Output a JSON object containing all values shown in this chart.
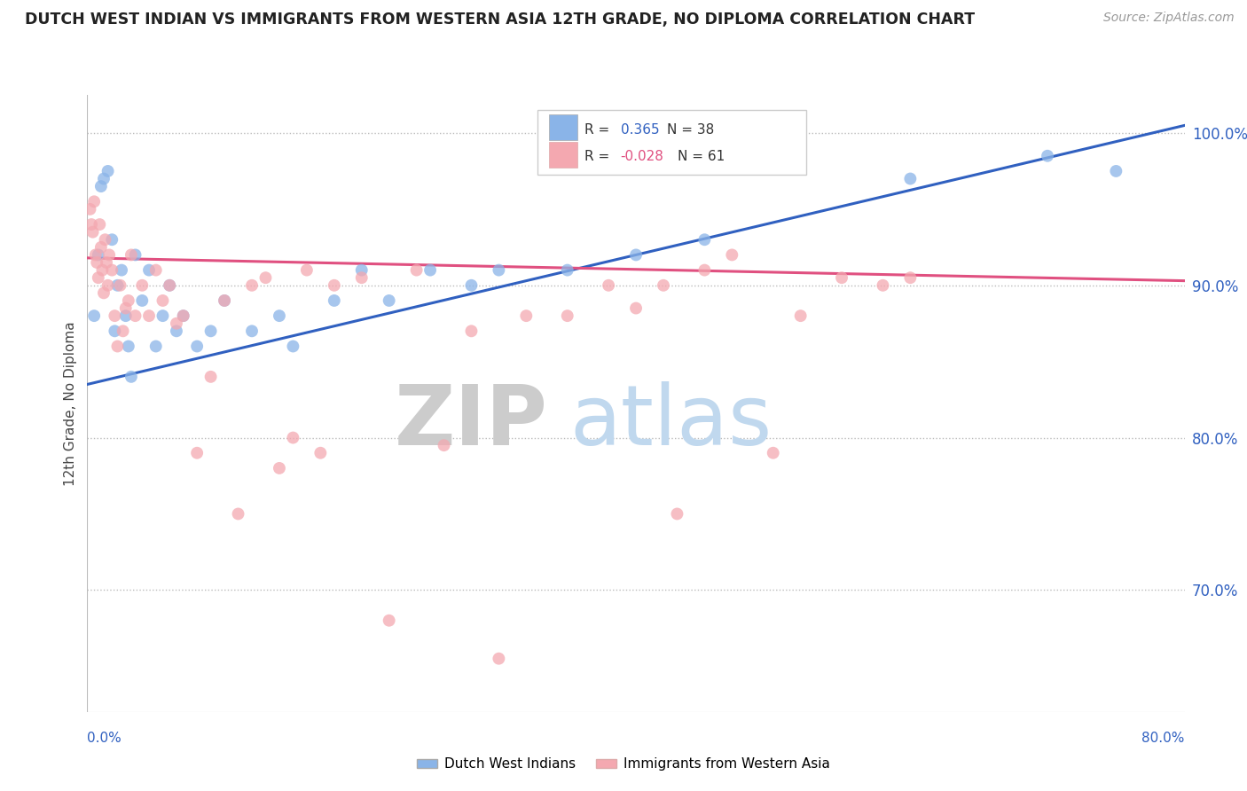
{
  "title": "DUTCH WEST INDIAN VS IMMIGRANTS FROM WESTERN ASIA 12TH GRADE, NO DIPLOMA CORRELATION CHART",
  "source": "Source: ZipAtlas.com",
  "ylabel": "12th Grade, No Diploma",
  "xmin": 0.0,
  "xmax": 80.0,
  "ymin": 62.0,
  "ymax": 102.5,
  "yticks": [
    70.0,
    80.0,
    90.0,
    100.0
  ],
  "legend_val1": "0.365",
  "legend_N1": "38",
  "legend_val2": "-0.028",
  "legend_N2": "61",
  "color_blue": "#8AB4E8",
  "color_pink": "#F4A8B0",
  "color_blue_line": "#3060C0",
  "color_pink_line": "#E05080",
  "blue_dots": [
    [
      0.5,
      88.0
    ],
    [
      0.8,
      92.0
    ],
    [
      1.0,
      96.5
    ],
    [
      1.2,
      97.0
    ],
    [
      1.5,
      97.5
    ],
    [
      1.8,
      93.0
    ],
    [
      2.0,
      87.0
    ],
    [
      2.2,
      90.0
    ],
    [
      2.5,
      91.0
    ],
    [
      2.8,
      88.0
    ],
    [
      3.0,
      86.0
    ],
    [
      3.2,
      84.0
    ],
    [
      3.5,
      92.0
    ],
    [
      4.0,
      89.0
    ],
    [
      4.5,
      91.0
    ],
    [
      5.0,
      86.0
    ],
    [
      5.5,
      88.0
    ],
    [
      6.0,
      90.0
    ],
    [
      6.5,
      87.0
    ],
    [
      7.0,
      88.0
    ],
    [
      8.0,
      86.0
    ],
    [
      9.0,
      87.0
    ],
    [
      10.0,
      89.0
    ],
    [
      12.0,
      87.0
    ],
    [
      14.0,
      88.0
    ],
    [
      15.0,
      86.0
    ],
    [
      18.0,
      89.0
    ],
    [
      20.0,
      91.0
    ],
    [
      22.0,
      89.0
    ],
    [
      25.0,
      91.0
    ],
    [
      28.0,
      90.0
    ],
    [
      30.0,
      91.0
    ],
    [
      35.0,
      91.0
    ],
    [
      40.0,
      92.0
    ],
    [
      45.0,
      93.0
    ],
    [
      60.0,
      97.0
    ],
    [
      70.0,
      98.5
    ],
    [
      75.0,
      97.5
    ]
  ],
  "pink_dots": [
    [
      0.2,
      95.0
    ],
    [
      0.3,
      94.0
    ],
    [
      0.4,
      93.5
    ],
    [
      0.5,
      95.5
    ],
    [
      0.6,
      92.0
    ],
    [
      0.7,
      91.5
    ],
    [
      0.8,
      90.5
    ],
    [
      0.9,
      94.0
    ],
    [
      1.0,
      92.5
    ],
    [
      1.1,
      91.0
    ],
    [
      1.2,
      89.5
    ],
    [
      1.3,
      93.0
    ],
    [
      1.4,
      91.5
    ],
    [
      1.5,
      90.0
    ],
    [
      1.6,
      92.0
    ],
    [
      1.8,
      91.0
    ],
    [
      2.0,
      88.0
    ],
    [
      2.2,
      86.0
    ],
    [
      2.4,
      90.0
    ],
    [
      2.6,
      87.0
    ],
    [
      2.8,
      88.5
    ],
    [
      3.0,
      89.0
    ],
    [
      3.2,
      92.0
    ],
    [
      3.5,
      88.0
    ],
    [
      4.0,
      90.0
    ],
    [
      4.5,
      88.0
    ],
    [
      5.0,
      91.0
    ],
    [
      5.5,
      89.0
    ],
    [
      6.0,
      90.0
    ],
    [
      6.5,
      87.5
    ],
    [
      7.0,
      88.0
    ],
    [
      8.0,
      79.0
    ],
    [
      9.0,
      84.0
    ],
    [
      10.0,
      89.0
    ],
    [
      11.0,
      75.0
    ],
    [
      12.0,
      90.0
    ],
    [
      13.0,
      90.5
    ],
    [
      14.0,
      78.0
    ],
    [
      15.0,
      80.0
    ],
    [
      16.0,
      91.0
    ],
    [
      17.0,
      79.0
    ],
    [
      18.0,
      90.0
    ],
    [
      20.0,
      90.5
    ],
    [
      22.0,
      68.0
    ],
    [
      24.0,
      91.0
    ],
    [
      26.0,
      79.5
    ],
    [
      28.0,
      87.0
    ],
    [
      30.0,
      65.5
    ],
    [
      32.0,
      88.0
    ],
    [
      35.0,
      88.0
    ],
    [
      38.0,
      90.0
    ],
    [
      40.0,
      88.5
    ],
    [
      42.0,
      90.0
    ],
    [
      43.0,
      75.0
    ],
    [
      45.0,
      91.0
    ],
    [
      47.0,
      92.0
    ],
    [
      50.0,
      79.0
    ],
    [
      52.0,
      88.0
    ],
    [
      55.0,
      90.5
    ],
    [
      58.0,
      90.0
    ],
    [
      60.0,
      90.5
    ]
  ],
  "blue_line": [
    0.0,
    80.0,
    83.5,
    100.5
  ],
  "pink_line": [
    0.0,
    80.0,
    91.8,
    90.3
  ]
}
